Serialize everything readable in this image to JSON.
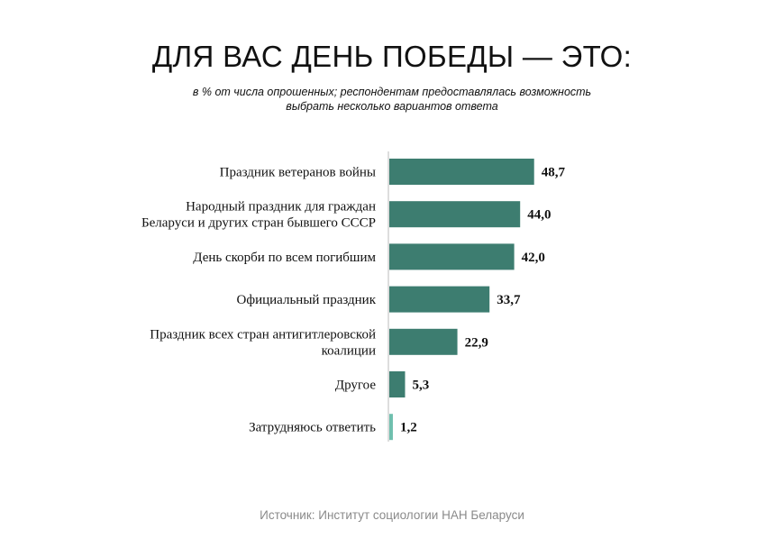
{
  "title": "ДЛЯ ВАС ДЕНЬ ПОБЕДЫ — ЭТО:",
  "subtitle_lines": [
    "в % от числа опрошенных; респондентам предоставлялась возможность",
    "выбрать несколько вариантов ответа"
  ],
  "source": "Источник: Институт социологии НАН Беларуси",
  "chart_data": {
    "type": "bar",
    "orientation": "horizontal",
    "title": "ДЛЯ ВАС ДЕНЬ ПОБЕДЫ — ЭТО:",
    "categories": [
      [
        "Праздник ветеранов войны"
      ],
      [
        "Народный праздник для граждан",
        "Беларуси и других стран бывшего СССР"
      ],
      [
        "День скорби по всем погибшим"
      ],
      [
        "Официальный праздник"
      ],
      [
        "Праздник всех стран антигитлеровской",
        "коалиции"
      ],
      [
        "Другое"
      ],
      [
        "Затрудняюсь ответить"
      ]
    ],
    "values": [
      48.7,
      44.0,
      42.0,
      33.7,
      22.9,
      5.3,
      1.2
    ],
    "value_labels": [
      "48,7",
      "44,0",
      "42,0",
      "33,7",
      "22,9",
      "5,3",
      "1,2"
    ],
    "xlim": [
      0,
      50
    ],
    "grid": false,
    "colors": [
      "#3d7d70",
      "#3d7d70",
      "#3d7d70",
      "#3d7d70",
      "#3d7d70",
      "#3d7d70",
      "#6fbfae"
    ],
    "axis_color": "#bbbbbb"
  }
}
